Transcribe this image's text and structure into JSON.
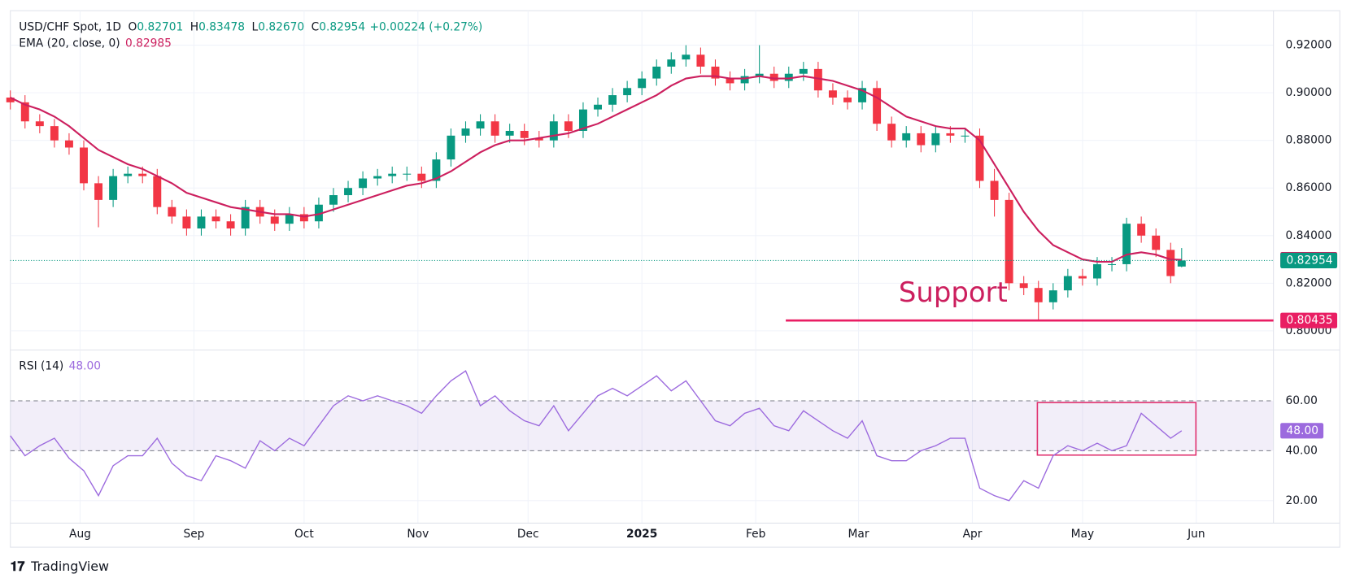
{
  "chart_data": [
    {
      "type": "candlestick",
      "title": "USD/CHF Spot, 1D",
      "ohlc_header": [
        {
          "label": "O",
          "value": "0.82701"
        },
        {
          "label": "H",
          "value": "0.83478"
        },
        {
          "label": "L",
          "value": "0.82670"
        },
        {
          "label": "C",
          "value": "0.82954"
        }
      ],
      "change": "+0.00224 (+0.27%)",
      "x": [
        0,
        4,
        8,
        12,
        16,
        20,
        24,
        28,
        32,
        36,
        40,
        44,
        48,
        52,
        56,
        60,
        64,
        68,
        72,
        76,
        80,
        84,
        88,
        92,
        96,
        100,
        104,
        108,
        112,
        116,
        120,
        124,
        128,
        132,
        136,
        140,
        144,
        148,
        152,
        156,
        160,
        164,
        168,
        172,
        176,
        180,
        184,
        188,
        192,
        196,
        200,
        204,
        208,
        212,
        216,
        220,
        224,
        228,
        232,
        236,
        240,
        244,
        248,
        252,
        256,
        260,
        264,
        268,
        272,
        276,
        280,
        284,
        288,
        292,
        296,
        300,
        304,
        308,
        312,
        316,
        319
      ],
      "xlim": [
        0,
        344
      ],
      "xticks": [
        {
          "value": 19,
          "label": "Aug"
        },
        {
          "value": 50,
          "label": "Sep"
        },
        {
          "value": 80,
          "label": "Oct"
        },
        {
          "value": 111,
          "label": "Nov"
        },
        {
          "value": 141,
          "label": "Dec"
        },
        {
          "value": 172,
          "label": "2025"
        },
        {
          "value": 203,
          "label": "Feb"
        },
        {
          "value": 231,
          "label": "Mar"
        },
        {
          "value": 262,
          "label": "Apr"
        },
        {
          "value": 292,
          "label": "May"
        },
        {
          "value": 323,
          "label": "Jun"
        }
      ],
      "open": [
        0.898,
        0.896,
        0.888,
        0.886,
        0.88,
        0.877,
        0.862,
        0.855,
        0.865,
        0.866,
        0.865,
        0.852,
        0.848,
        0.843,
        0.848,
        0.846,
        0.843,
        0.852,
        0.848,
        0.845,
        0.849,
        0.846,
        0.853,
        0.857,
        0.86,
        0.864,
        0.865,
        0.866,
        0.866,
        0.863,
        0.872,
        0.882,
        0.885,
        0.888,
        0.882,
        0.884,
        0.881,
        0.88,
        0.888,
        0.884,
        0.893,
        0.895,
        0.899,
        0.902,
        0.906,
        0.911,
        0.914,
        0.916,
        0.911,
        0.906,
        0.904,
        0.907,
        0.908,
        0.905,
        0.908,
        0.91,
        0.901,
        0.898,
        0.896,
        0.902,
        0.887,
        0.88,
        0.883,
        0.878,
        0.883,
        0.882,
        0.882,
        0.863,
        0.855,
        0.82,
        0.818,
        0.812,
        0.817,
        0.823,
        0.822,
        0.828,
        0.828,
        0.845,
        0.84,
        0.834,
        0.82701
      ],
      "high": [
        0.901,
        0.899,
        0.891,
        0.889,
        0.883,
        0.88,
        0.865,
        0.868,
        0.869,
        0.869,
        0.868,
        0.855,
        0.851,
        0.851,
        0.851,
        0.849,
        0.855,
        0.855,
        0.851,
        0.852,
        0.852,
        0.856,
        0.86,
        0.863,
        0.867,
        0.868,
        0.869,
        0.869,
        0.869,
        0.875,
        0.885,
        0.888,
        0.891,
        0.891,
        0.887,
        0.887,
        0.884,
        0.891,
        0.891,
        0.896,
        0.898,
        0.902,
        0.905,
        0.909,
        0.914,
        0.917,
        0.92,
        0.919,
        0.914,
        0.909,
        0.91,
        0.92,
        0.911,
        0.911,
        0.913,
        0.913,
        0.904,
        0.901,
        0.905,
        0.905,
        0.89,
        0.886,
        0.886,
        0.886,
        0.886,
        0.885,
        0.885,
        0.868,
        0.858,
        0.823,
        0.821,
        0.82,
        0.826,
        0.826,
        0.831,
        0.831,
        0.8475,
        0.848,
        0.843,
        0.837,
        0.83478
      ],
      "low": [
        0.893,
        0.885,
        0.883,
        0.877,
        0.874,
        0.859,
        0.8435,
        0.852,
        0.862,
        0.862,
        0.849,
        0.845,
        0.84,
        0.84,
        0.843,
        0.84,
        0.84,
        0.845,
        0.842,
        0.842,
        0.843,
        0.843,
        0.85,
        0.854,
        0.857,
        0.861,
        0.862,
        0.863,
        0.86,
        0.86,
        0.869,
        0.879,
        0.882,
        0.879,
        0.879,
        0.878,
        0.877,
        0.877,
        0.881,
        0.881,
        0.89,
        0.892,
        0.896,
        0.899,
        0.903,
        0.908,
        0.911,
        0.908,
        0.903,
        0.901,
        0.901,
        0.904,
        0.902,
        0.902,
        0.905,
        0.898,
        0.895,
        0.893,
        0.893,
        0.884,
        0.877,
        0.877,
        0.875,
        0.875,
        0.879,
        0.879,
        0.86,
        0.848,
        0.817,
        0.815,
        0.8043,
        0.809,
        0.814,
        0.819,
        0.819,
        0.825,
        0.825,
        0.837,
        0.831,
        0.82,
        0.8267
      ],
      "close": [
        0.896,
        0.888,
        0.886,
        0.88,
        0.877,
        0.862,
        0.855,
        0.865,
        0.866,
        0.865,
        0.852,
        0.848,
        0.843,
        0.848,
        0.846,
        0.843,
        0.852,
        0.848,
        0.845,
        0.849,
        0.846,
        0.853,
        0.857,
        0.86,
        0.864,
        0.865,
        0.866,
        0.866,
        0.863,
        0.872,
        0.882,
        0.885,
        0.888,
        0.882,
        0.884,
        0.881,
        0.88,
        0.888,
        0.884,
        0.893,
        0.895,
        0.899,
        0.902,
        0.906,
        0.911,
        0.914,
        0.916,
        0.911,
        0.906,
        0.904,
        0.907,
        0.908,
        0.905,
        0.908,
        0.91,
        0.901,
        0.898,
        0.896,
        0.902,
        0.887,
        0.88,
        0.883,
        0.878,
        0.883,
        0.882,
        0.882,
        0.863,
        0.855,
        0.82,
        0.818,
        0.812,
        0.817,
        0.823,
        0.822,
        0.828,
        0.828,
        0.845,
        0.84,
        0.834,
        0.823,
        0.82954
      ],
      "up_color": "#089981",
      "down_color": "#f23645",
      "series": [
        {
          "name": "EMA (20, close, 0)",
          "color": "#cc1f5e",
          "values": [
            0.898,
            0.895,
            0.893,
            0.89,
            0.886,
            0.881,
            0.876,
            0.873,
            0.87,
            0.868,
            0.865,
            0.862,
            0.858,
            0.856,
            0.854,
            0.852,
            0.851,
            0.85,
            0.849,
            0.849,
            0.848,
            0.849,
            0.851,
            0.853,
            0.855,
            0.857,
            0.859,
            0.861,
            0.862,
            0.864,
            0.867,
            0.871,
            0.875,
            0.878,
            0.88,
            0.88,
            0.881,
            0.882,
            0.883,
            0.885,
            0.887,
            0.89,
            0.893,
            0.896,
            0.899,
            0.903,
            0.906,
            0.907,
            0.907,
            0.906,
            0.906,
            0.907,
            0.906,
            0.906,
            0.907,
            0.906,
            0.905,
            0.903,
            0.901,
            0.898,
            0.894,
            0.89,
            0.888,
            0.886,
            0.885,
            0.885,
            0.88,
            0.87,
            0.86,
            0.85,
            0.842,
            0.836,
            0.833,
            0.83,
            0.829,
            0.829,
            0.832,
            0.833,
            0.832,
            0.83,
            0.82985
          ]
        }
      ],
      "support": {
        "label": "Support",
        "value": 0.80435,
        "color": "#e91e63"
      },
      "ylim": [
        0.7923,
        0.9345
      ],
      "yticks": [
        {
          "value": 0.8,
          "label": "0.80000"
        },
        {
          "value": 0.82,
          "label": "0.82000"
        },
        {
          "value": 0.84,
          "label": "0.84000"
        },
        {
          "value": 0.86,
          "label": "0.86000"
        },
        {
          "value": 0.88,
          "label": "0.88000"
        },
        {
          "value": 0.9,
          "label": "0.90000"
        },
        {
          "value": 0.92,
          "label": "0.92000"
        }
      ],
      "grid": true
    },
    {
      "type": "line",
      "title": "RSI (14)",
      "value_label": "48.00",
      "color": "#9c6ade",
      "values": [
        46,
        38,
        42,
        45,
        37,
        32,
        22,
        34,
        38,
        38,
        45,
        35,
        30,
        28,
        38,
        36,
        33,
        44,
        40,
        45,
        42,
        50,
        58,
        62,
        60,
        62,
        60,
        58,
        55,
        62,
        68,
        72,
        58,
        62,
        56,
        52,
        50,
        58,
        48,
        55,
        62,
        65,
        62,
        66,
        70,
        64,
        68,
        60,
        52,
        50,
        55,
        57,
        50,
        48,
        56,
        52,
        48,
        45,
        52,
        38,
        36,
        36,
        40,
        42,
        45,
        45,
        25,
        22,
        20,
        28,
        25,
        38,
        42,
        40,
        43,
        40,
        42,
        55,
        50,
        45,
        48
      ],
      "ylim": [
        11,
        80
      ],
      "yticks": [
        {
          "value": 20,
          "label": "20.00"
        },
        {
          "value": 40,
          "label": "40.00"
        },
        {
          "value": 60,
          "label": "60.00"
        }
      ],
      "grid": true
    }
  ],
  "footer": "TradingView"
}
